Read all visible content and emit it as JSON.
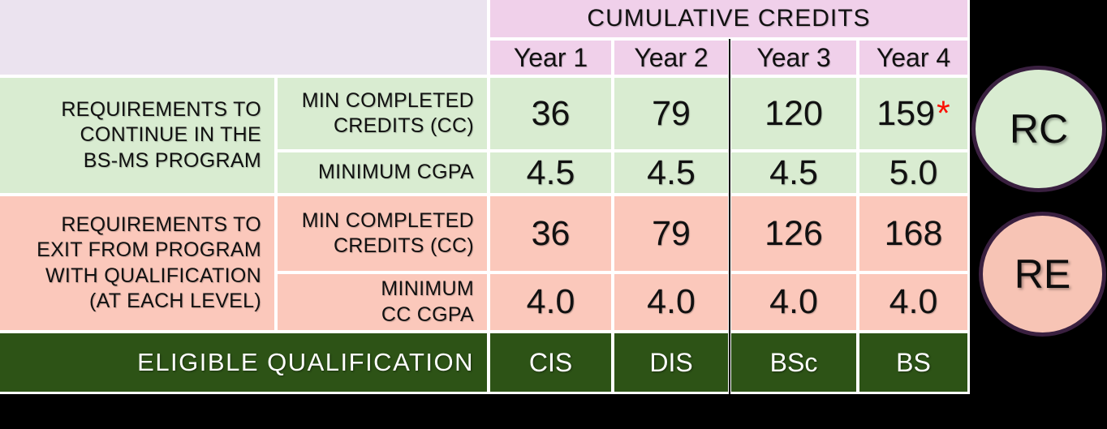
{
  "table": {
    "header": {
      "corner_label": "",
      "title": "CUMULATIVE CREDITS",
      "years": [
        "Year  1",
        "Year 2",
        "Year 3",
        "Year 4"
      ]
    },
    "groups": [
      {
        "name": "requirements-to-continue",
        "label_lines": [
          "REQUIREMENTS TO",
          "CONTINUE IN THE",
          "BS-MS PROGRAM"
        ],
        "rows": [
          {
            "label_lines": [
              "MIN COMPLETED",
              "CREDITS (CC)"
            ],
            "values": [
              "36",
              "79",
              "120",
              "159"
            ],
            "note": "*"
          },
          {
            "label_lines": [
              "MINIMUM CGPA"
            ],
            "values": [
              "4.5",
              "4.5",
              "4.5",
              "5.0"
            ]
          }
        ]
      },
      {
        "name": "requirements-to-exit",
        "label_lines": [
          "REQUIREMENTS TO",
          "EXIT FROM PROGRAM",
          "WITH QUALIFICATION",
          "(AT EACH LEVEL)"
        ],
        "rows": [
          {
            "label_lines": [
              "MIN COMPLETED",
              "CREDITS (CC)"
            ],
            "values": [
              "36",
              "79",
              "126",
              "168"
            ]
          },
          {
            "label_lines": [
              "MINIMUM",
              "CC CGPA"
            ],
            "values": [
              "4.0",
              "4.0",
              "4.0",
              "4.0"
            ]
          }
        ]
      }
    ],
    "footer": {
      "label": "ELIGIBLE QUALIFICATION",
      "values": [
        "CIS",
        "DIS",
        "BSc",
        "BS"
      ]
    }
  },
  "badges": [
    {
      "label": "RC"
    },
    {
      "label": "RE"
    }
  ],
  "colors": {
    "background": "#000000",
    "corner_bg": "#ebe3ef",
    "header_bg": "#f0d0ea",
    "continue_bg": "#d9ecd1",
    "exit_bg": "#fbc8bb",
    "footer_bg": "#2d5316",
    "footer_text": "#ffffff",
    "grid_lines": "#ffffff",
    "asterisk": "#fb0f00",
    "divider": "#000000",
    "badge_border": "#3a2040",
    "badge_rc_bg": "#d9ecd1",
    "badge_re_bg": "#f7c4b5"
  }
}
